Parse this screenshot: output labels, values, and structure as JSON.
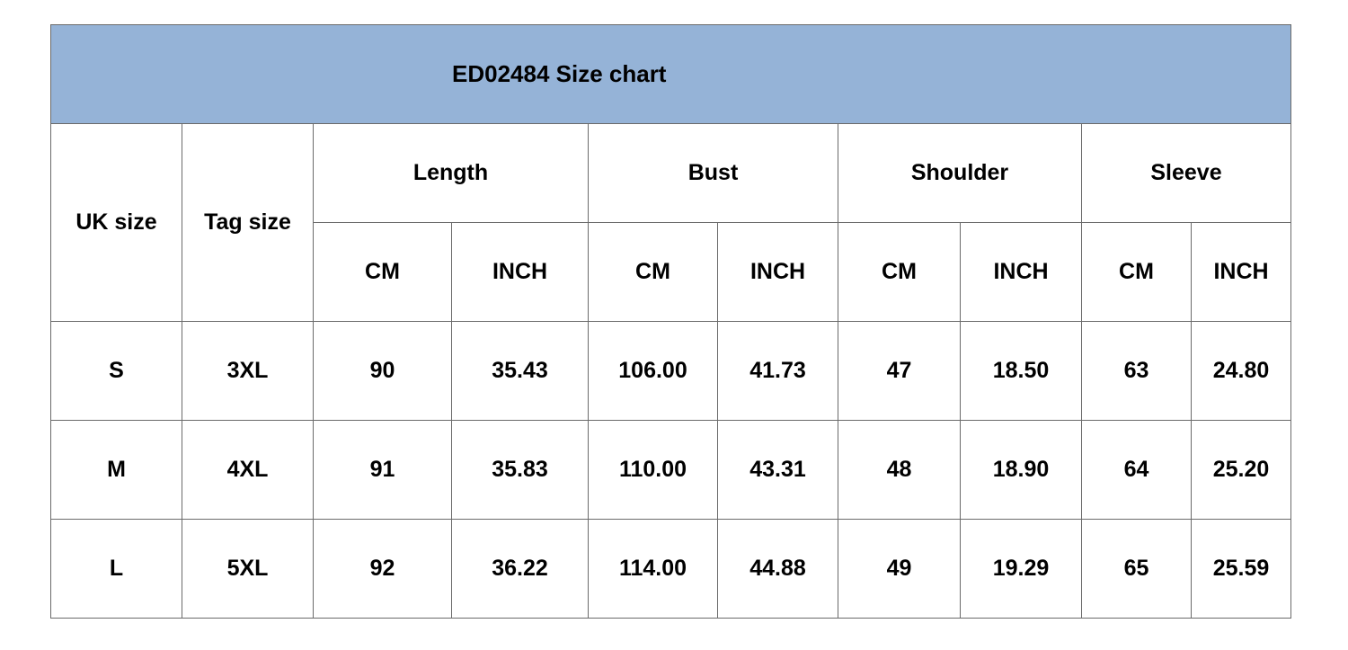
{
  "title": "ED02484 Size chart",
  "header_color": "#95b3d7",
  "headers": {
    "uk_size": "UK size",
    "tag_size": "Tag size",
    "groups": [
      "Length",
      "Bust",
      "Shoulder",
      "Sleeve"
    ],
    "units": [
      "CM",
      "INCH",
      "CM",
      "INCH",
      "CM",
      "INCH",
      "CM",
      "INCH"
    ]
  },
  "rows": [
    [
      "S",
      "3XL",
      "90",
      "35.43",
      "106.00",
      "41.73",
      "47",
      "18.50",
      "63",
      "24.80"
    ],
    [
      "M",
      "4XL",
      "91",
      "35.83",
      "110.00",
      "43.31",
      "48",
      "18.90",
      "64",
      "25.20"
    ],
    [
      "L",
      "5XL",
      "92",
      "36.22",
      "114.00",
      "44.88",
      "49",
      "19.29",
      "65",
      "25.59"
    ]
  ]
}
